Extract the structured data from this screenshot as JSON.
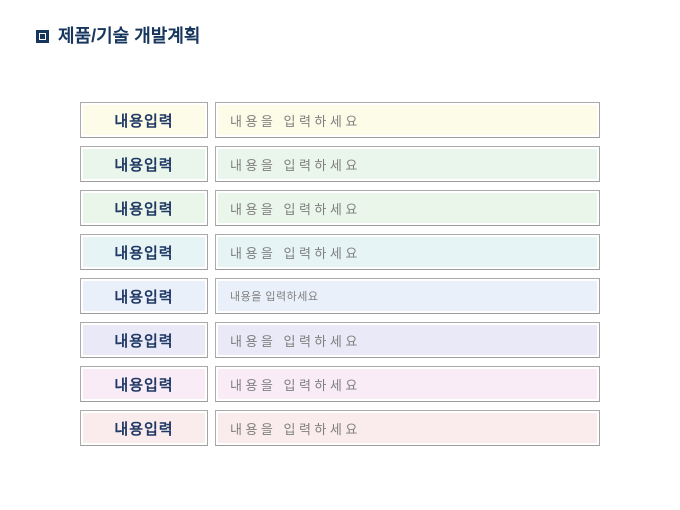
{
  "title": {
    "text": "제품/기술 개발계획",
    "bullet_icon": "square-in-square-icon"
  },
  "colors": {
    "title_text": "#17365D",
    "label_text": "#1F3864",
    "field_text": "#7F7F7F",
    "box_border": "#ABABAB",
    "inner_line": "#FFFFFF",
    "page_background": "#FFFFFF"
  },
  "rows": [
    {
      "label": "내용입력",
      "value": "내용을 입력하세요",
      "bg": "#FCFCE8",
      "text_size": "normal"
    },
    {
      "label": "내용입력",
      "value": "내용을 입력하세요",
      "bg": "#EAF6EC",
      "text_size": "normal"
    },
    {
      "label": "내용입력",
      "value": "내용을 입력하세요",
      "bg": "#E9F6E9",
      "text_size": "normal"
    },
    {
      "label": "내용입력",
      "value": "내용을 입력하세요",
      "bg": "#E6F4F6",
      "text_size": "normal"
    },
    {
      "label": "내용입력",
      "value": "내용을 입력하세요",
      "bg": "#EAF0FA",
      "text_size": "small"
    },
    {
      "label": "내용입력",
      "value": "내용을 입력하세요",
      "bg": "#E9E9F7",
      "text_size": "normal"
    },
    {
      "label": "내용입력",
      "value": "내용을 입력하세요",
      "bg": "#F9ECF7",
      "text_size": "normal"
    },
    {
      "label": "내용입력",
      "value": "내용을 입력하세요",
      "bg": "#FAEBED",
      "text_size": "normal"
    }
  ]
}
